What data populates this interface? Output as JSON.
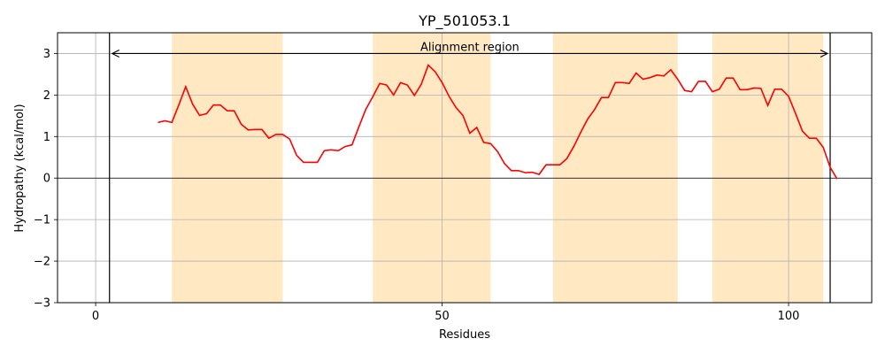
{
  "chart_data": {
    "type": "line",
    "title": "YP_501053.1",
    "xlabel": "Residues",
    "ylabel": "Hydropathy (kcal/mol)",
    "xlim": [
      -5.5,
      112
    ],
    "ylim": [
      -3,
      3.5
    ],
    "xticks": [
      0,
      50,
      100
    ],
    "yticks": [
      -3,
      -2,
      -1,
      0,
      1,
      2,
      3
    ],
    "ytick_labels": [
      "−3",
      "−2",
      "−1",
      "0",
      "1",
      "2",
      "3"
    ],
    "grid": true,
    "colors": {
      "line": "#ff0000",
      "band": "#ffe8c2",
      "grid": "#b0b0b0",
      "axis": "#000000"
    },
    "shaded_regions": [
      [
        11,
        27
      ],
      [
        40,
        57
      ],
      [
        66,
        84
      ],
      [
        89,
        105
      ]
    ],
    "alignment_region": {
      "label": "Alignment region",
      "start": 2,
      "end": 106,
      "y": 3
    },
    "series": [
      {
        "x": [
          9,
          10,
          11,
          12,
          13,
          14,
          15,
          16,
          17,
          18,
          19,
          20,
          21,
          22,
          23,
          24,
          25,
          26,
          27,
          28,
          29,
          30,
          31,
          32,
          33,
          34,
          35,
          36,
          37,
          38,
          39,
          40,
          41,
          42,
          43,
          44,
          45,
          46,
          47,
          48,
          49,
          50,
          51,
          52,
          53,
          54,
          55,
          56,
          57,
          58,
          59,
          60,
          61,
          62,
          63,
          64,
          65,
          66,
          67,
          68,
          69,
          70,
          71,
          72,
          73,
          74,
          75,
          76,
          77,
          78,
          79,
          80,
          81,
          82,
          83,
          84,
          85,
          86,
          87,
          88,
          89,
          90,
          91,
          92,
          93,
          94,
          95,
          96,
          97,
          98,
          99,
          100,
          101,
          102,
          103,
          104,
          105,
          106,
          107
        ],
        "y": [
          1.34,
          1.38,
          1.34,
          1.76,
          2.2,
          1.78,
          1.51,
          1.55,
          1.76,
          1.76,
          1.62,
          1.62,
          1.3,
          1.16,
          1.17,
          1.17,
          0.96,
          1.05,
          1.05,
          0.94,
          0.55,
          0.38,
          0.38,
          0.38,
          0.66,
          0.68,
          0.66,
          0.76,
          0.8,
          1.24,
          1.66,
          1.96,
          2.28,
          2.24,
          2.0,
          2.3,
          2.24,
          1.99,
          2.26,
          2.72,
          2.56,
          2.3,
          1.97,
          1.7,
          1.51,
          1.08,
          1.22,
          0.86,
          0.83,
          0.64,
          0.35,
          0.18,
          0.18,
          0.13,
          0.14,
          0.09,
          0.32,
          0.32,
          0.32,
          0.47,
          0.76,
          1.1,
          1.42,
          1.65,
          1.94,
          1.94,
          2.3,
          2.3,
          2.28,
          2.53,
          2.38,
          2.42,
          2.48,
          2.46,
          2.61,
          2.38,
          2.11,
          2.08,
          2.33,
          2.33,
          2.08,
          2.14,
          2.41,
          2.41,
          2.13,
          2.13,
          2.17,
          2.16,
          1.75,
          2.14,
          2.14,
          1.97,
          1.56,
          1.13,
          0.96,
          0.96,
          0.74,
          0.26,
          -0.02
        ]
      }
    ]
  }
}
